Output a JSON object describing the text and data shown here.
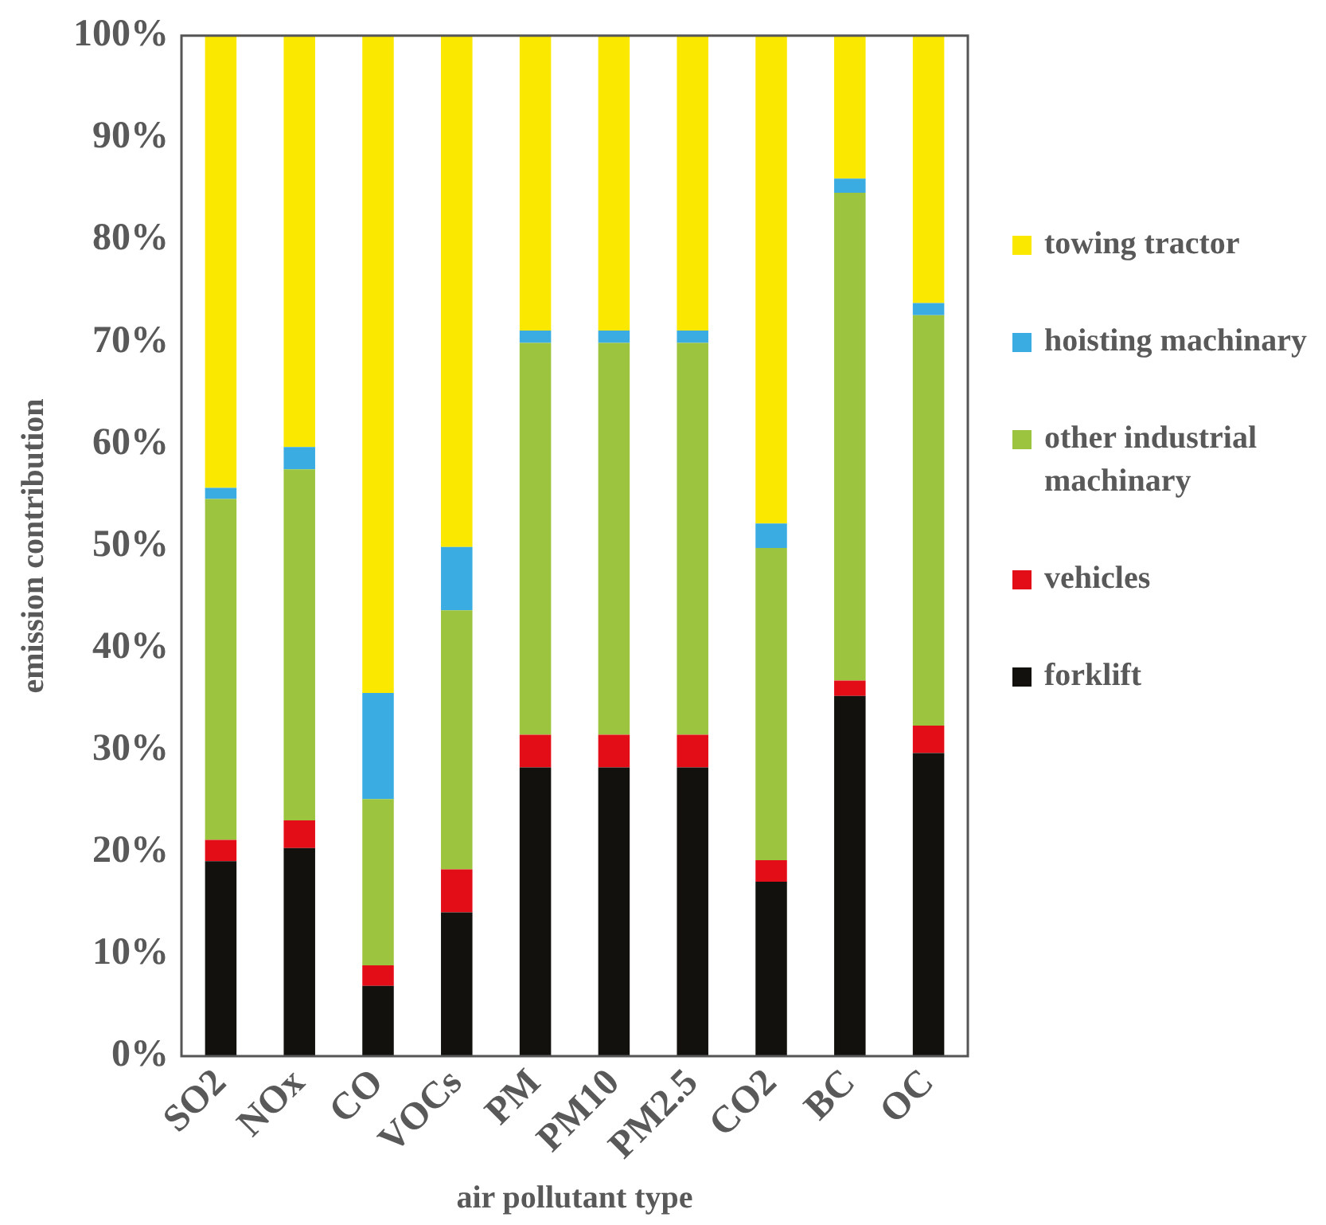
{
  "chart_data": {
    "type": "bar",
    "stacked": true,
    "xlabel": "air pollutant type",
    "ylabel": "emission contribution",
    "categories": [
      "SO2",
      "NOx",
      "CO",
      "VOCs",
      "PM",
      "PM10",
      "PM2.5",
      "CO2",
      "BC",
      "OC"
    ],
    "series": [
      {
        "name": "forklift",
        "color": "#12110d",
        "values": [
          19.1,
          20.4,
          6.9,
          14.1,
          28.3,
          28.3,
          28.3,
          17.1,
          35.3,
          29.7
        ]
      },
      {
        "name": "vehicles",
        "color": "#e30d18",
        "values": [
          2.1,
          2.7,
          2.0,
          4.2,
          3.2,
          3.2,
          3.2,
          2.1,
          1.5,
          2.7
        ]
      },
      {
        "name": "other industrial machinary",
        "color": "#9dc43f",
        "values": [
          33.4,
          34.4,
          16.3,
          25.4,
          38.4,
          38.4,
          38.4,
          30.6,
          47.8,
          40.2
        ]
      },
      {
        "name": "hoisting machinary",
        "color": "#3aace1",
        "values": [
          1.1,
          2.2,
          10.4,
          6.2,
          1.2,
          1.2,
          1.2,
          2.4,
          1.4,
          1.2
        ]
      },
      {
        "name": "towing tractor",
        "color": "#fbe800",
        "values": [
          44.3,
          40.3,
          64.4,
          50.1,
          28.9,
          28.9,
          28.9,
          47.8,
          14.0,
          26.2
        ]
      }
    ],
    "ylim": [
      0,
      100
    ],
    "yticks": [
      {
        "value": 0,
        "label": "0%"
      },
      {
        "value": 10,
        "label": "10%"
      },
      {
        "value": 20,
        "label": "20%"
      },
      {
        "value": 30,
        "label": "30%"
      },
      {
        "value": 40,
        "label": "40%"
      },
      {
        "value": 50,
        "label": "50%"
      },
      {
        "value": 60,
        "label": "60%"
      },
      {
        "value": 70,
        "label": "70%"
      },
      {
        "value": 80,
        "label": "80%"
      },
      {
        "value": 90,
        "label": "90%"
      },
      {
        "value": 100,
        "label": "100%"
      }
    ],
    "grid": false,
    "legend": "right"
  }
}
